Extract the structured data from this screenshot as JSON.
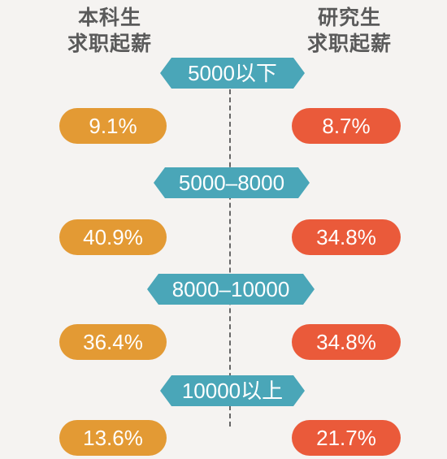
{
  "chart_data": {
    "type": "table",
    "title": "",
    "series": [
      {
        "name": "本科生求职起薪",
        "values": [
          9.1,
          40.9,
          36.4,
          13.6
        ]
      },
      {
        "name": "研究生求职起薪",
        "values": [
          8.7,
          34.8,
          34.8,
          21.7
        ]
      }
    ],
    "categories": [
      "5000以下",
      "5000–8000",
      "8000–10000",
      "10000以上"
    ]
  },
  "headers": {
    "left_line1": "本科生",
    "left_line2": "求职起薪",
    "right_line1": "研究生",
    "right_line2": "求职起薪"
  },
  "labels": {
    "cat1": "5000以下",
    "cat2": "5000–8000",
    "cat3": "8000–10000",
    "cat4": "10000以上",
    "left1": "9.1%",
    "left2": "40.9%",
    "left3": "36.4%",
    "left4": "13.6%",
    "right1": "8.7%",
    "right2": "34.8%",
    "right3": "34.8%",
    "right4": "21.7%"
  },
  "colors": {
    "category": "#4aa6b8",
    "undergrad": "#e39a34",
    "graduate": "#ea5a3a",
    "header_text": "#5a5a5a"
  }
}
